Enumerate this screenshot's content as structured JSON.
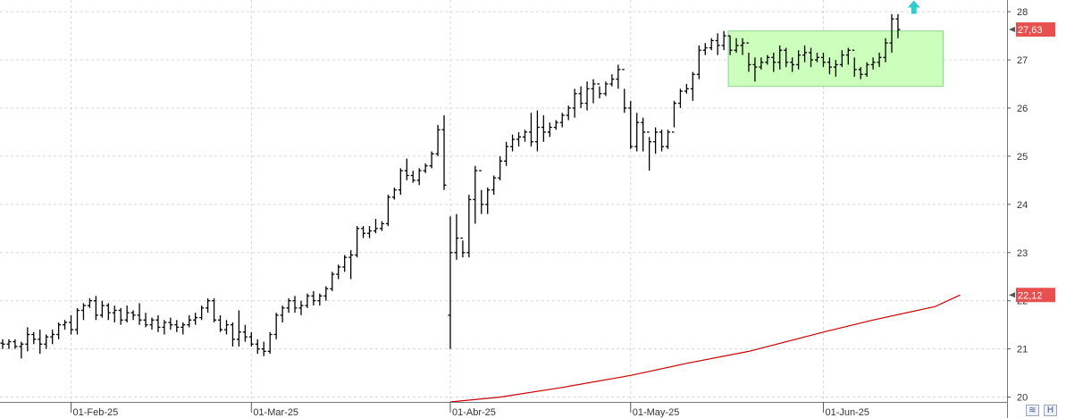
{
  "chart_data": {
    "type": "ohlc",
    "title": "",
    "xlabel": "",
    "ylabel": "",
    "ylim": [
      19.9,
      28.15
    ],
    "y_ticks": [
      "20",
      "21",
      "22",
      "23",
      "24",
      "25",
      "26",
      "27",
      "28"
    ],
    "y_tick_values": [
      20,
      21,
      22,
      23,
      24,
      25,
      26,
      27,
      28
    ],
    "x_ticks": [
      {
        "label": "01-Feb-25",
        "index": 11
      },
      {
        "label": "01-Mar-25",
        "index": 40
      },
      {
        "label": "01-Abr-25",
        "index": 72
      },
      {
        "label": "01-May-25",
        "index": 101
      },
      {
        "label": "01-Jun-25",
        "index": 132
      }
    ],
    "grid": true,
    "colors": {
      "bars": "#000000",
      "moving_average": "#cc0000",
      "highlight_zone": "#ccffbb",
      "last_price_tag": "#e85050",
      "signal_arrow": "#33cccc",
      "grid": "#d8d8d8"
    },
    "series": [
      {
        "name": "",
        "kind": "ohlc",
        "start_index": 0,
        "step": 1,
        "data": [
          [
            21.12,
            21.2,
            21.0,
            21.1
          ],
          [
            21.1,
            21.2,
            21.0,
            21.15
          ],
          [
            21.15,
            21.2,
            21.0,
            21.05
          ],
          [
            21.05,
            21.15,
            20.8,
            21.1
          ],
          [
            21.1,
            21.45,
            20.95,
            21.3
          ],
          [
            21.3,
            21.35,
            21.1,
            21.2
          ],
          [
            21.2,
            21.4,
            20.9,
            21.1
          ],
          [
            21.1,
            21.3,
            21.0,
            21.25
          ],
          [
            21.25,
            21.4,
            21.1,
            21.3
          ],
          [
            21.3,
            21.55,
            21.2,
            21.5
          ],
          [
            21.5,
            21.6,
            21.4,
            21.55
          ],
          [
            21.55,
            21.7,
            21.3,
            21.4
          ],
          [
            21.4,
            21.85,
            21.3,
            21.8
          ],
          [
            21.8,
            21.95,
            21.6,
            21.9
          ],
          [
            21.9,
            22.05,
            21.85,
            22.0
          ],
          [
            22.0,
            22.1,
            21.6,
            21.7
          ],
          [
            21.7,
            22.0,
            21.65,
            21.9
          ],
          [
            21.9,
            21.95,
            21.6,
            21.75
          ],
          [
            21.75,
            21.9,
            21.55,
            21.8
          ],
          [
            21.8,
            21.85,
            21.5,
            21.6
          ],
          [
            21.6,
            21.9,
            21.55,
            21.75
          ],
          [
            21.75,
            21.8,
            21.6,
            21.7
          ],
          [
            21.7,
            21.95,
            21.5,
            21.6
          ],
          [
            21.6,
            21.75,
            21.45,
            21.5
          ],
          [
            21.5,
            21.65,
            21.4,
            21.6
          ],
          [
            21.6,
            21.7,
            21.35,
            21.45
          ],
          [
            21.45,
            21.6,
            21.3,
            21.55
          ],
          [
            21.55,
            21.65,
            21.4,
            21.5
          ],
          [
            21.5,
            21.6,
            21.35,
            21.45
          ],
          [
            21.45,
            21.55,
            21.3,
            21.5
          ],
          [
            21.5,
            21.7,
            21.45,
            21.6
          ],
          [
            21.6,
            21.75,
            21.5,
            21.65
          ],
          [
            21.65,
            21.9,
            21.6,
            21.85
          ],
          [
            21.85,
            22.05,
            21.75,
            22.0
          ],
          [
            22.0,
            22.05,
            21.55,
            21.6
          ],
          [
            21.6,
            21.7,
            21.35,
            21.4
          ],
          [
            21.4,
            21.6,
            21.3,
            21.5
          ],
          [
            21.5,
            21.55,
            21.05,
            21.2
          ],
          [
            21.2,
            21.8,
            21.05,
            21.35
          ],
          [
            21.35,
            21.5,
            21.15,
            21.25
          ],
          [
            21.25,
            21.35,
            21.05,
            21.1
          ],
          [
            21.1,
            21.2,
            20.9,
            21.0
          ],
          [
            21.0,
            21.15,
            20.85,
            20.95
          ],
          [
            20.95,
            21.35,
            20.9,
            21.3
          ],
          [
            21.3,
            21.75,
            21.2,
            21.7
          ],
          [
            21.7,
            21.9,
            21.55,
            21.85
          ],
          [
            21.85,
            22.05,
            21.75,
            22.0
          ],
          [
            22.0,
            22.1,
            21.75,
            21.85
          ],
          [
            21.85,
            22.0,
            21.7,
            21.9
          ],
          [
            21.9,
            22.15,
            21.85,
            22.1
          ],
          [
            22.1,
            22.2,
            21.9,
            22.0
          ],
          [
            22.0,
            22.15,
            21.9,
            22.1
          ],
          [
            22.1,
            22.3,
            22.0,
            22.25
          ],
          [
            22.25,
            22.6,
            22.2,
            22.55
          ],
          [
            22.55,
            22.75,
            22.45,
            22.7
          ],
          [
            22.7,
            22.95,
            22.6,
            22.9
          ],
          [
            22.9,
            23.05,
            22.45,
            22.95
          ],
          [
            22.95,
            23.55,
            22.9,
            23.5
          ],
          [
            23.5,
            23.55,
            23.3,
            23.4
          ],
          [
            23.4,
            23.55,
            23.3,
            23.45
          ],
          [
            23.45,
            23.7,
            23.4,
            23.5
          ],
          [
            23.5,
            23.65,
            23.45,
            23.6
          ],
          [
            23.6,
            24.2,
            23.55,
            24.15
          ],
          [
            24.15,
            24.35,
            24.1,
            24.3
          ],
          [
            24.3,
            24.75,
            24.2,
            24.7
          ],
          [
            24.7,
            24.95,
            24.5,
            24.6
          ],
          [
            24.6,
            24.7,
            24.45,
            24.5
          ],
          [
            24.5,
            24.75,
            24.4,
            24.7
          ],
          [
            24.7,
            24.85,
            24.65,
            24.8
          ],
          [
            24.8,
            25.1,
            24.75,
            25.05
          ],
          [
            25.05,
            25.65,
            25.0,
            25.55
          ],
          [
            25.55,
            25.85,
            24.3,
            24.4
          ],
          [
            21.7,
            23.75,
            21.0,
            23.0
          ],
          [
            23.0,
            23.8,
            22.85,
            23.3
          ],
          [
            23.3,
            23.25,
            22.9,
            23.0
          ],
          [
            23.0,
            24.2,
            22.9,
            24.1
          ],
          [
            24.1,
            24.8,
            23.6,
            24.7
          ],
          [
            24.7,
            24.3,
            23.8,
            24.0
          ],
          [
            24.0,
            24.35,
            23.8,
            24.3
          ],
          [
            24.3,
            24.6,
            24.2,
            24.55
          ],
          [
            24.55,
            25.0,
            24.5,
            24.9
          ],
          [
            24.9,
            25.3,
            24.8,
            25.2
          ],
          [
            25.2,
            25.45,
            25.1,
            25.35
          ],
          [
            25.35,
            25.5,
            25.2,
            25.4
          ],
          [
            25.4,
            25.55,
            25.3,
            25.5
          ],
          [
            25.5,
            25.9,
            25.2,
            25.3
          ],
          [
            25.3,
            25.95,
            25.1,
            25.6
          ],
          [
            25.6,
            25.85,
            25.3,
            25.5
          ],
          [
            25.5,
            25.7,
            25.4,
            25.6
          ],
          [
            25.6,
            25.75,
            25.55,
            25.7
          ],
          [
            25.7,
            25.9,
            25.6,
            25.85
          ],
          [
            25.85,
            26.05,
            25.75,
            26.0
          ],
          [
            26.0,
            26.4,
            25.8,
            26.3
          ],
          [
            26.3,
            26.45,
            26.0,
            26.1
          ],
          [
            26.1,
            26.55,
            25.95,
            26.4
          ],
          [
            26.4,
            26.6,
            26.1,
            26.5
          ],
          [
            26.5,
            26.45,
            26.2,
            26.3
          ],
          [
            26.3,
            26.55,
            26.25,
            26.5
          ],
          [
            26.5,
            26.7,
            26.45,
            26.6
          ],
          [
            26.6,
            26.9,
            26.4,
            26.8
          ],
          [
            26.8,
            26.4,
            25.9,
            26.0
          ],
          [
            26.0,
            26.15,
            25.15,
            25.2
          ],
          [
            25.2,
            25.9,
            25.1,
            25.7
          ],
          [
            25.7,
            25.8,
            25.1,
            25.5
          ],
          [
            25.5,
            25.4,
            24.7,
            25.3
          ],
          [
            25.3,
            25.6,
            25.05,
            25.5
          ],
          [
            25.5,
            25.55,
            25.1,
            25.2
          ],
          [
            25.2,
            25.55,
            25.15,
            25.5
          ],
          [
            25.5,
            26.15,
            25.6,
            26.1
          ],
          [
            26.1,
            26.4,
            26.0,
            26.35
          ],
          [
            26.35,
            26.5,
            26.3,
            26.4
          ],
          [
            26.4,
            26.75,
            26.15,
            26.7
          ],
          [
            26.7,
            27.3,
            26.6,
            27.2
          ],
          [
            27.2,
            27.35,
            27.1,
            27.25
          ],
          [
            27.25,
            27.45,
            27.2,
            27.4
          ],
          [
            27.4,
            27.55,
            27.1,
            27.3
          ],
          [
            27.3,
            27.6,
            27.2,
            27.5
          ],
          [
            27.5,
            27.5,
            27.1,
            27.2
          ],
          [
            27.2,
            27.45,
            27.15,
            27.3
          ],
          [
            27.3,
            27.45,
            27.1,
            27.35
          ],
          [
            27.35,
            27.15,
            26.75,
            26.9
          ],
          [
            26.9,
            27.05,
            26.55,
            26.85
          ],
          [
            26.85,
            27.05,
            26.8,
            26.95
          ],
          [
            26.95,
            27.1,
            26.9,
            27.05
          ],
          [
            27.05,
            27.15,
            26.75,
            26.95
          ],
          [
            26.95,
            27.3,
            26.8,
            27.2
          ],
          [
            27.2,
            27.25,
            26.85,
            26.95
          ],
          [
            26.95,
            27.05,
            26.75,
            26.9
          ],
          [
            26.9,
            27.2,
            26.8,
            27.1
          ],
          [
            27.1,
            27.3,
            26.95,
            27.15
          ],
          [
            27.15,
            27.25,
            26.85,
            27.0
          ],
          [
            27.0,
            27.15,
            26.95,
            27.05
          ],
          [
            27.05,
            27.15,
            26.85,
            26.95
          ],
          [
            26.95,
            27.05,
            26.7,
            26.85
          ],
          [
            26.85,
            27.0,
            26.65,
            26.9
          ],
          [
            26.9,
            27.2,
            26.85,
            27.1
          ],
          [
            27.1,
            27.25,
            26.9,
            27.2
          ],
          [
            27.2,
            27.05,
            26.65,
            26.8
          ],
          [
            26.8,
            26.85,
            26.6,
            26.7
          ],
          [
            26.7,
            26.95,
            26.65,
            26.9
          ],
          [
            26.9,
            27.05,
            26.8,
            26.95
          ],
          [
            26.95,
            27.15,
            26.85,
            27.05
          ],
          [
            27.05,
            27.45,
            26.95,
            27.35
          ],
          [
            27.35,
            27.95,
            27.15,
            27.85
          ],
          [
            27.85,
            27.95,
            27.45,
            27.63
          ]
        ]
      },
      {
        "name": "",
        "kind": "line",
        "start_index": 72,
        "step": 1,
        "values_sampled": [
          [
            72,
            19.9
          ],
          [
            80,
            20.0
          ],
          [
            90,
            20.2
          ],
          [
            101,
            20.45
          ],
          [
            110,
            20.7
          ],
          [
            120,
            20.95
          ],
          [
            132,
            21.35
          ],
          [
            140,
            21.6
          ],
          [
            150,
            21.88
          ],
          [
            154,
            22.12
          ]
        ]
      }
    ],
    "highlight_zone": {
      "x_start_index": 117,
      "x_end_index": 151,
      "y_low": 26.45,
      "y_high": 27.6
    },
    "signal_arrow": {
      "index": 148,
      "value": 27.9,
      "direction": "up"
    },
    "price_tags": [
      {
        "label": "27,63",
        "value": 27.63,
        "color": "#e85050"
      },
      {
        "label": "22,12",
        "value": 22.12,
        "color": "#e85050"
      }
    ]
  },
  "controls": {
    "zoom_icon": "zoom-icon",
    "save_icon": "save-icon"
  }
}
